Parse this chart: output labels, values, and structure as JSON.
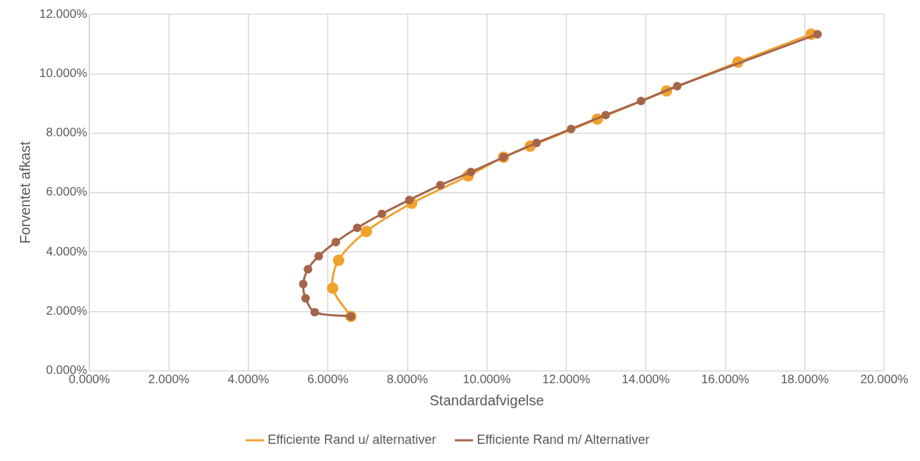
{
  "chart_data": {
    "type": "line",
    "xlabel": "Standardafvigelse",
    "ylabel": "Forventet afkast",
    "xlim": [
      0,
      20
    ],
    "ylim": [
      0,
      12
    ],
    "xticks": [
      {
        "value": 0,
        "label": "0.000%"
      },
      {
        "value": 2,
        "label": "2.000%"
      },
      {
        "value": 4,
        "label": "4.000%"
      },
      {
        "value": 6,
        "label": "6.000%"
      },
      {
        "value": 8,
        "label": "8.000%"
      },
      {
        "value": 10,
        "label": "10.000%"
      },
      {
        "value": 12,
        "label": "12.000%"
      },
      {
        "value": 14,
        "label": "14.000%"
      },
      {
        "value": 16,
        "label": "16.000%"
      },
      {
        "value": 18,
        "label": "18.000%"
      },
      {
        "value": 20,
        "label": "20.000%"
      }
    ],
    "yticks": [
      {
        "value": 0,
        "label": "0.000%"
      },
      {
        "value": 2,
        "label": "2.000%"
      },
      {
        "value": 4,
        "label": "4.000%"
      },
      {
        "value": 6,
        "label": "6.000%"
      },
      {
        "value": 8,
        "label": "8.000%"
      },
      {
        "value": 10,
        "label": "10.000%"
      },
      {
        "value": 12,
        "label": "12.000%"
      }
    ],
    "grid": true,
    "legend": "bottom",
    "marker": "circle",
    "line_style": "solid",
    "series": [
      {
        "name": "Efficiente Rand u/ alternativer",
        "color": "#f0a22e",
        "x": [
          6.58,
          6.12,
          6.27,
          6.97,
          8.11,
          9.53,
          10.42,
          11.09,
          12.78,
          14.52,
          16.32,
          18.16
        ],
        "values": [
          1.83,
          2.78,
          3.72,
          4.69,
          5.64,
          6.56,
          7.19,
          7.56,
          8.47,
          9.42,
          10.39,
          11.33
        ]
      },
      {
        "name": "Efficiente Rand m/ Alternativer",
        "color": "#a5654a",
        "x": [
          6.58,
          5.67,
          5.44,
          5.38,
          5.5,
          5.77,
          6.2,
          6.74,
          7.36,
          8.05,
          8.83,
          9.6,
          10.42,
          11.25,
          12.12,
          12.99,
          13.88,
          14.79,
          18.32
        ],
        "values": [
          1.83,
          1.97,
          2.44,
          2.92,
          3.42,
          3.86,
          4.33,
          4.81,
          5.28,
          5.75,
          6.25,
          6.69,
          7.19,
          7.67,
          8.14,
          8.61,
          9.08,
          9.58,
          11.33
        ]
      }
    ]
  }
}
